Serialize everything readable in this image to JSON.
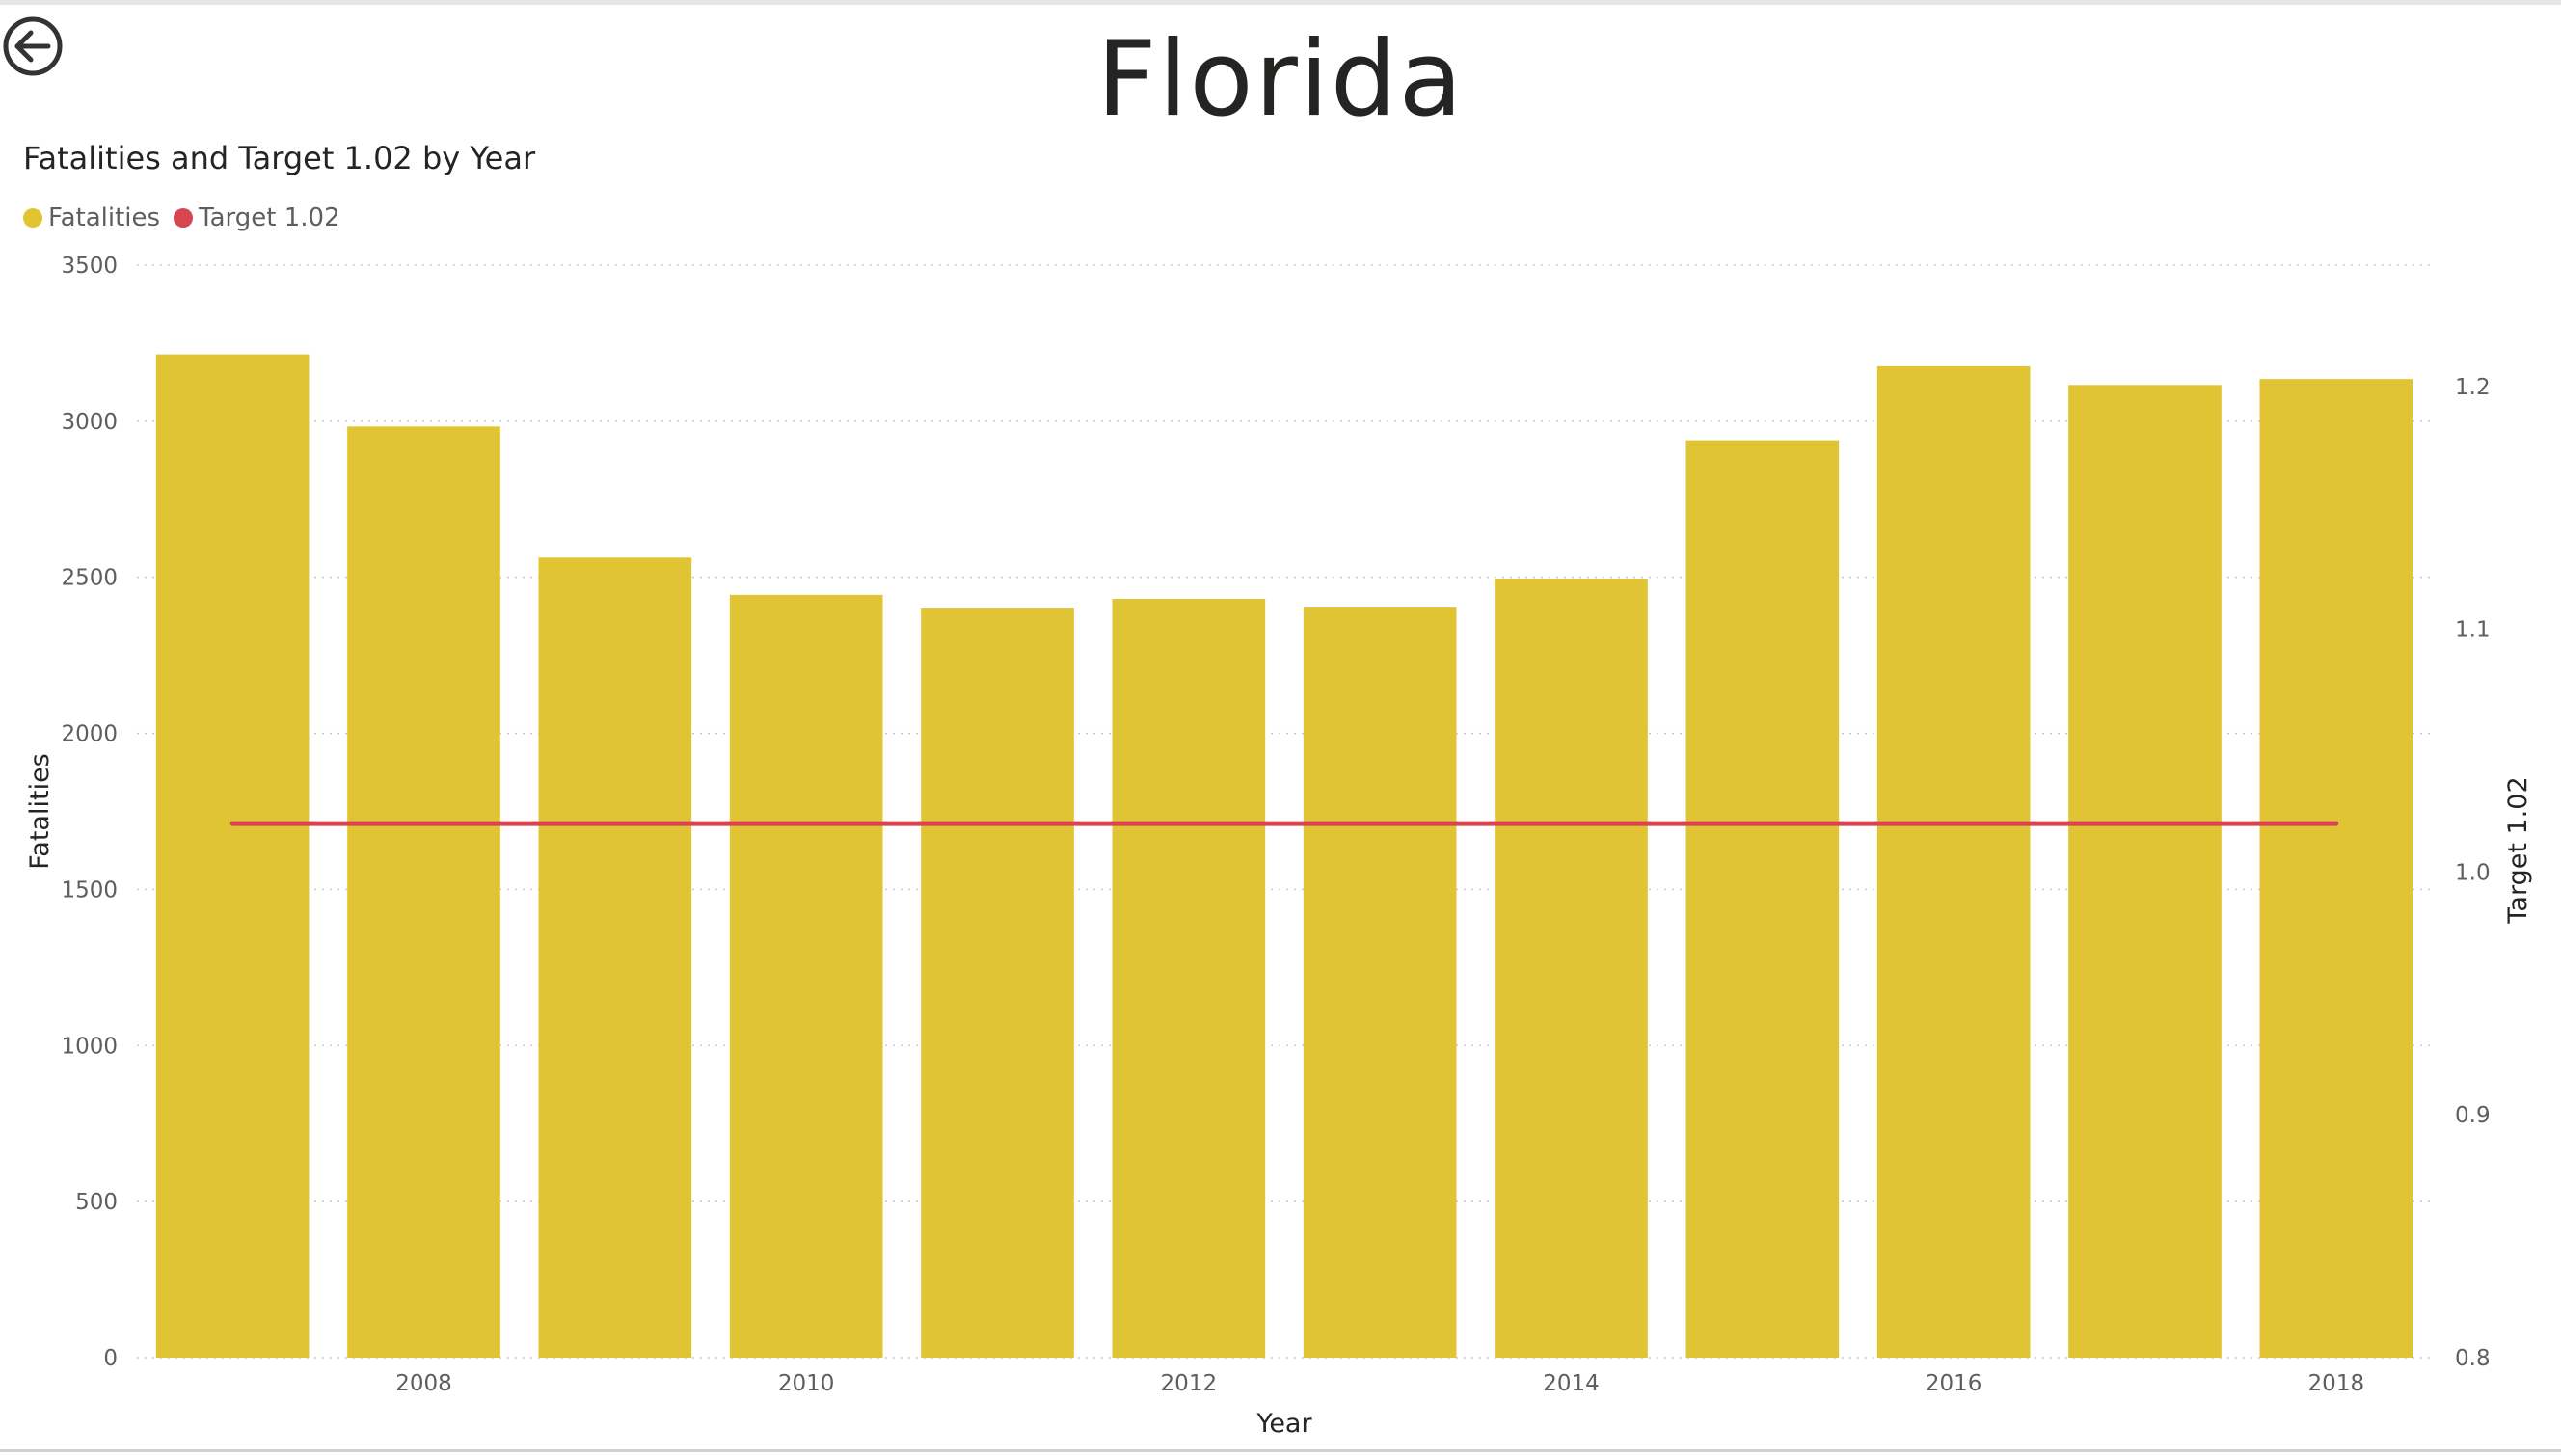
{
  "page": {
    "title": "Florida",
    "back_icon": "back-arrow-icon"
  },
  "colors": {
    "bar": "#E0C433",
    "target_line": "#D64550",
    "grid": "#c8c8c8",
    "text": "#252423",
    "tick_text": "#605e5c"
  },
  "legend": {
    "items": [
      {
        "label": "Fatalities",
        "color": "#E0C433"
      },
      {
        "label": "Target 1.02",
        "color": "#D64550"
      }
    ],
    "placement": "top-left"
  },
  "chart_data": {
    "type": "bar",
    "title": "Fatalities and Target 1.02 by Year",
    "xlabel": "Year",
    "ylabel": "Fatalities",
    "y2label": "Target 1.02",
    "categories": [
      2007,
      2008,
      2009,
      2010,
      2011,
      2012,
      2013,
      2014,
      2015,
      2016,
      2017,
      2018
    ],
    "x_tick_labels": [
      "2008",
      "2010",
      "2012",
      "2014",
      "2016",
      "2018"
    ],
    "series": [
      {
        "name": "Fatalities",
        "type": "bar",
        "axis": "left",
        "values": [
          3214,
          2983,
          2563,
          2444,
          2400,
          2431,
          2403,
          2496,
          2939,
          3176,
          3116,
          3135
        ]
      },
      {
        "name": "Target 1.02",
        "type": "line",
        "axis": "right",
        "values": [
          1.02,
          1.02,
          1.02,
          1.02,
          1.02,
          1.02,
          1.02,
          1.02,
          1.02,
          1.02,
          1.02,
          1.02
        ]
      }
    ],
    "ylim": [
      0,
      3500
    ],
    "yticks": [
      "0",
      "500",
      "1000",
      "1500",
      "2000",
      "2500",
      "3000",
      "3500"
    ],
    "y2lim": [
      0.8,
      1.25
    ],
    "y2ticks": [
      "0.8",
      "0.9",
      "1.0",
      "1.1",
      "1.2"
    ],
    "grid": "dotted-horizontal"
  }
}
